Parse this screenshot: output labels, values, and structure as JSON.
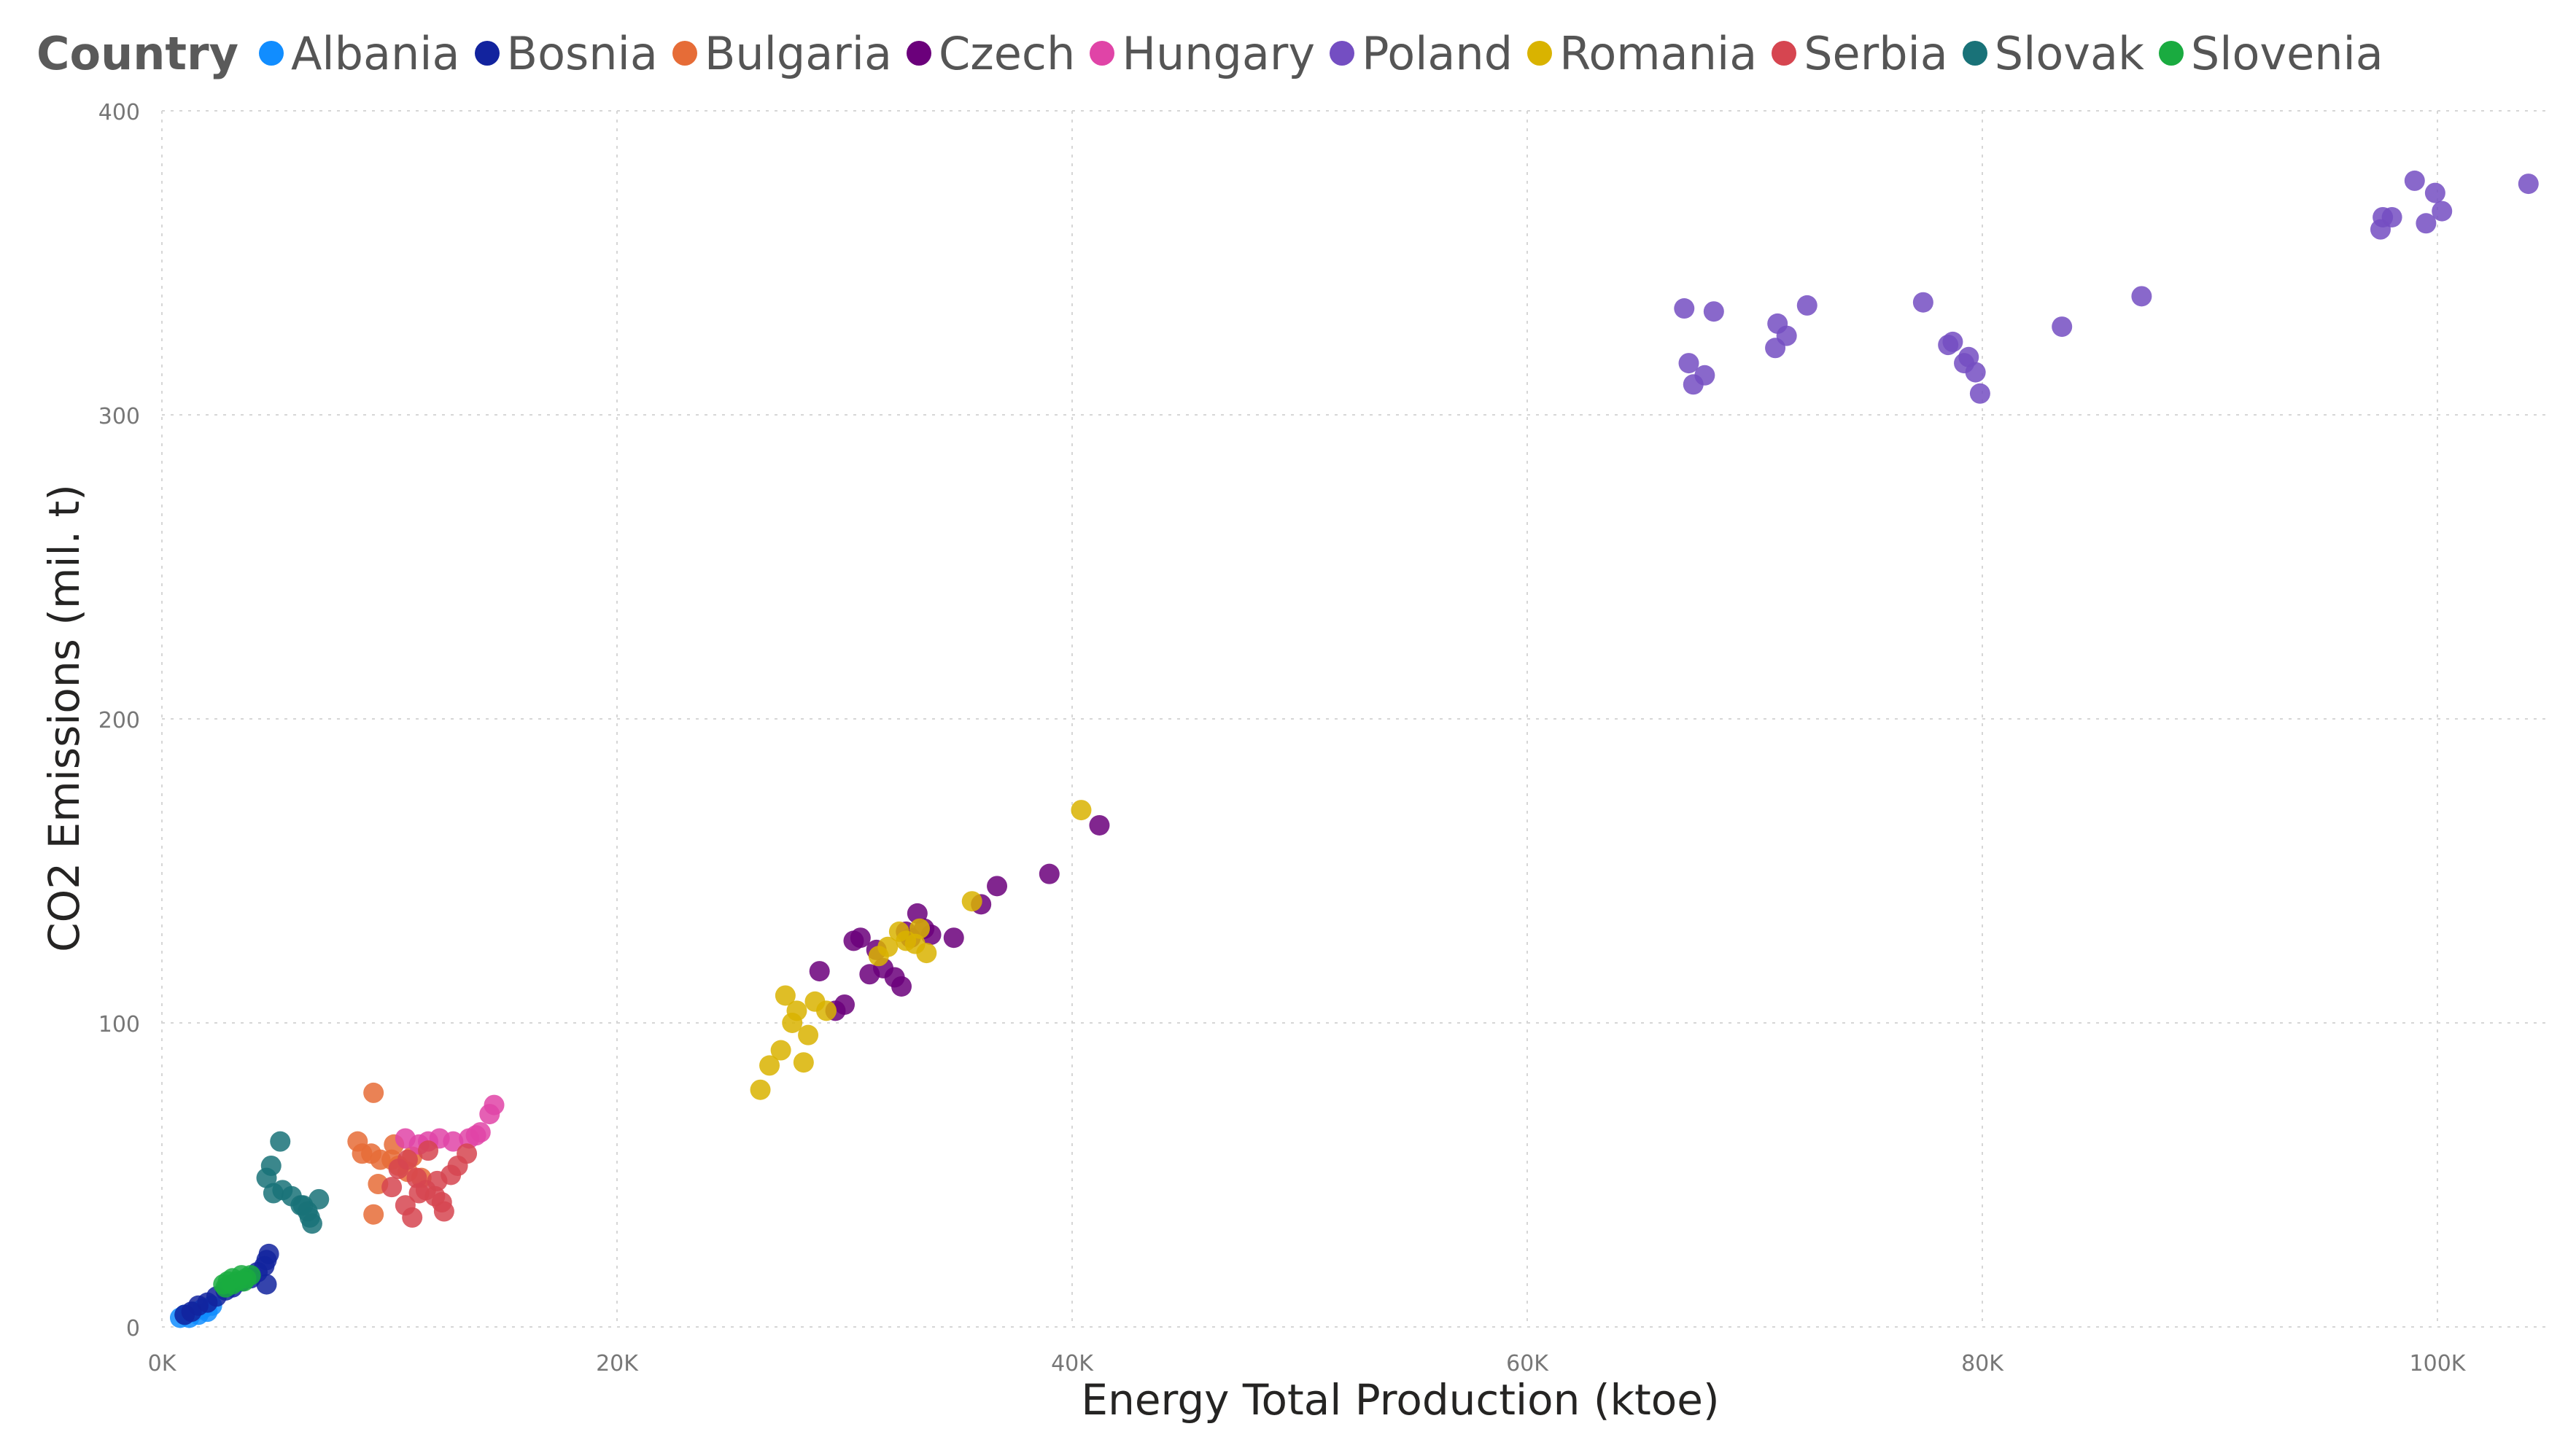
{
  "chart_data": {
    "type": "scatter",
    "legend_title": "Country",
    "legend_position": "top-left",
    "xlabel": "Energy Total Production (ktoe)",
    "ylabel": "CO2 Emissions (mil. t)",
    "xlim": [
      0,
      105000
    ],
    "ylim": [
      0,
      400
    ],
    "x_ticks": [
      0,
      20000,
      40000,
      60000,
      80000,
      100000
    ],
    "x_tick_labels": [
      "0K",
      "20K",
      "40K",
      "60K",
      "80K",
      "100K"
    ],
    "y_ticks": [
      0,
      100,
      200,
      300,
      400
    ],
    "y_tick_labels": [
      "0",
      "100",
      "200",
      "300",
      "400"
    ],
    "grid": true,
    "series": [
      {
        "name": "Albania",
        "color": "#118DFF",
        "x": [
          800,
          1000,
          1200,
          1400,
          1600,
          1800,
          2000,
          2200
        ],
        "y": [
          3,
          4,
          3,
          5,
          4,
          6,
          5,
          7
        ]
      },
      {
        "name": "Bosnia",
        "color": "#12239E",
        "x": [
          1000,
          1300,
          1600,
          2000,
          2400,
          2800,
          3100,
          3500,
          3900,
          4200,
          4500,
          4600,
          4700,
          4600
        ],
        "y": [
          4,
          5,
          7,
          8,
          10,
          12,
          13,
          15,
          16,
          18,
          20,
          22,
          24,
          14
        ]
      },
      {
        "name": "Bulgaria",
        "color": "#E66C37",
        "x": [
          9300,
          8600,
          8800,
          9200,
          9600,
          10100,
          10400,
          9500,
          9300,
          10800,
          11400,
          11000,
          10200
        ],
        "y": [
          77,
          61,
          57,
          57,
          55,
          55,
          53,
          47,
          37,
          51,
          49,
          56,
          60
        ]
      },
      {
        "name": "Czech",
        "color": "#6B007B",
        "x": [
          41200,
          39000,
          36700,
          36000,
          34800,
          33800,
          33500,
          33200,
          32900,
          32700,
          32500,
          32200,
          31700,
          31400,
          31100,
          30700,
          30400,
          30000,
          29600,
          28900
        ],
        "y": [
          165,
          149,
          145,
          139,
          128,
          129,
          131,
          136,
          128,
          130,
          112,
          115,
          118,
          124,
          116,
          128,
          127,
          106,
          104,
          117
        ]
      },
      {
        "name": "Hungary",
        "color": "#E044A7",
        "x": [
          14600,
          14400,
          14000,
          13800,
          13500,
          12800,
          12200,
          11700,
          11300,
          10700
        ],
        "y": [
          73,
          70,
          64,
          63,
          62,
          61,
          62,
          61,
          60,
          62
        ]
      },
      {
        "name": "Poland",
        "color": "#744EC2",
        "x": [
          104000,
          99000,
          99900,
          99500,
          100200,
          98000,
          97500,
          97600,
          87000,
          83500,
          79900,
          79700,
          79400,
          79200,
          78700,
          78500,
          77400,
          72300,
          71400,
          71000,
          70900,
          68200,
          67800,
          67300,
          67100,
          66900
        ],
        "y": [
          376,
          377,
          373,
          363,
          367,
          365,
          361,
          365,
          339,
          329,
          307,
          314,
          319,
          317,
          324,
          323,
          337,
          336,
          326,
          330,
          322,
          334,
          313,
          310,
          317,
          335
        ]
      },
      {
        "name": "Romania",
        "color": "#D9B300",
        "x": [
          40400,
          35600,
          33600,
          33300,
          33100,
          32700,
          32400,
          31900,
          31500,
          29200,
          28700,
          28400,
          28200,
          27900,
          27700,
          27400,
          27200,
          26700,
          26300
        ],
        "y": [
          170,
          140,
          123,
          131,
          126,
          127,
          130,
          125,
          122,
          104,
          107,
          96,
          87,
          104,
          100,
          109,
          91,
          86,
          78
        ]
      },
      {
        "name": "Serbia",
        "color": "#D64550",
        "x": [
          10100,
          10400,
          10700,
          11000,
          11300,
          11700,
          12100,
          12400,
          12700,
          13000,
          13400,
          10800,
          11200,
          11600,
          12000,
          12300
        ],
        "y": [
          46,
          52,
          40,
          36,
          44,
          58,
          48,
          38,
          50,
          53,
          57,
          55,
          49,
          45,
          43,
          41
        ]
      },
      {
        "name": "Slovak",
        "color": "#197278",
        "x": [
          5200,
          4800,
          4600,
          4900,
          5300,
          5700,
          6100,
          6400,
          6600,
          6900,
          6500,
          6200
        ],
        "y": [
          61,
          53,
          49,
          44,
          45,
          43,
          40,
          38,
          34,
          42,
          36,
          40
        ]
      },
      {
        "name": "Slovenia",
        "color": "#1AAB40",
        "x": [
          2700,
          2900,
          3100,
          3300,
          3500,
          3700,
          3900,
          3100,
          3600,
          2800
        ],
        "y": [
          14,
          15,
          16,
          15,
          17,
          16,
          17,
          14,
          15,
          13
        ]
      }
    ]
  }
}
